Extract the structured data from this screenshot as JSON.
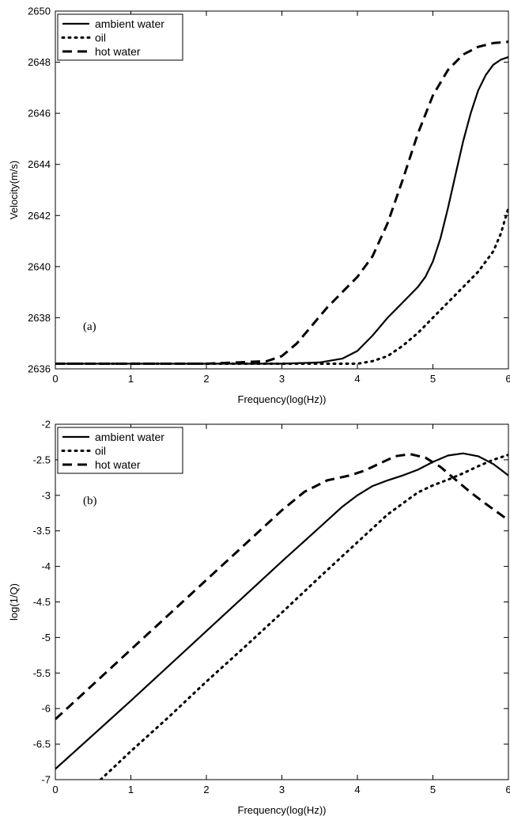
{
  "chart_data": [
    {
      "type": "line",
      "panel_label": "(a)",
      "title": "",
      "xlabel": "Frequency(log(Hz))",
      "ylabel": "Velocity(m/s)",
      "xlim": [
        0,
        6
      ],
      "ylim": [
        2636,
        2650
      ],
      "xticks": [
        0,
        1,
        2,
        3,
        4,
        5,
        6
      ],
      "yticks": [
        2636,
        2638,
        2640,
        2642,
        2644,
        2646,
        2648,
        2650
      ],
      "grid": false,
      "legend_position": "top-left",
      "series": [
        {
          "name": "ambient water",
          "style": "solid",
          "color": "#000000",
          "x": [
            0,
            1,
            2,
            3,
            3.5,
            3.8,
            4.0,
            4.2,
            4.4,
            4.6,
            4.8,
            4.9,
            5.0,
            5.1,
            5.2,
            5.3,
            5.4,
            5.5,
            5.6,
            5.7,
            5.8,
            5.9,
            6.0
          ],
          "y": [
            2636.2,
            2636.2,
            2636.2,
            2636.2,
            2636.25,
            2636.4,
            2636.7,
            2637.3,
            2638.0,
            2638.6,
            2639.2,
            2639.6,
            2640.2,
            2641.1,
            2642.3,
            2643.6,
            2644.9,
            2646.0,
            2646.9,
            2647.5,
            2647.9,
            2648.1,
            2648.2
          ]
        },
        {
          "name": "oil",
          "style": "dotted",
          "color": "#000000",
          "x": [
            0,
            1,
            2,
            3,
            4,
            4.2,
            4.4,
            4.6,
            4.8,
            5.0,
            5.2,
            5.4,
            5.6,
            5.8,
            5.9,
            6.0
          ],
          "y": [
            2636.2,
            2636.2,
            2636.2,
            2636.2,
            2636.2,
            2636.3,
            2636.5,
            2636.9,
            2637.4,
            2638.0,
            2638.6,
            2639.2,
            2639.8,
            2640.6,
            2641.3,
            2642.3
          ]
        },
        {
          "name": "hot water",
          "style": "dashed",
          "color": "#000000",
          "x": [
            0,
            1,
            2,
            2.8,
            3.0,
            3.2,
            3.4,
            3.6,
            3.8,
            4.0,
            4.2,
            4.4,
            4.6,
            4.8,
            5.0,
            5.2,
            5.4,
            5.6,
            5.8,
            6.0
          ],
          "y": [
            2636.2,
            2636.2,
            2636.2,
            2636.3,
            2636.5,
            2637.0,
            2637.7,
            2638.4,
            2639.0,
            2639.6,
            2640.4,
            2641.7,
            2643.4,
            2645.2,
            2646.7,
            2647.7,
            2648.3,
            2648.6,
            2648.75,
            2648.8
          ]
        }
      ]
    },
    {
      "type": "line",
      "panel_label": "(b)",
      "title": "",
      "xlabel": "Frequency(log(Hz))",
      "ylabel": "log(1/Q)",
      "xlim": [
        0,
        6
      ],
      "ylim": [
        -7,
        -2
      ],
      "xticks": [
        0,
        1,
        2,
        3,
        4,
        5,
        6
      ],
      "yticks": [
        -7,
        -6.5,
        -6,
        -5.5,
        -5,
        -4.5,
        -4,
        -3.5,
        -3,
        -2.5,
        -2
      ],
      "grid": false,
      "legend_position": "top-left",
      "series": [
        {
          "name": "ambient water",
          "style": "solid",
          "color": "#000000",
          "x": [
            0,
            0.5,
            1,
            1.5,
            2,
            2.5,
            3,
            3.5,
            3.8,
            4.0,
            4.2,
            4.4,
            4.6,
            4.8,
            5.0,
            5.2,
            5.4,
            5.6,
            5.8,
            6.0
          ],
          "y": [
            -6.85,
            -6.37,
            -5.89,
            -5.4,
            -4.91,
            -4.42,
            -3.93,
            -3.45,
            -3.16,
            -3.0,
            -2.87,
            -2.79,
            -2.72,
            -2.64,
            -2.53,
            -2.44,
            -2.41,
            -2.45,
            -2.56,
            -2.72
          ]
        },
        {
          "name": "oil",
          "style": "dotted",
          "color": "#000000",
          "x": [
            0.6,
            1.0,
            1.5,
            2.0,
            2.5,
            3.0,
            3.5,
            4.0,
            4.4,
            4.8,
            5.0,
            5.2,
            5.4,
            5.6,
            5.8,
            6.0
          ],
          "y": [
            -7.0,
            -6.6,
            -6.12,
            -5.62,
            -5.14,
            -4.65,
            -4.15,
            -3.66,
            -3.27,
            -2.96,
            -2.86,
            -2.78,
            -2.69,
            -2.59,
            -2.5,
            -2.43
          ]
        },
        {
          "name": "hot water",
          "style": "dashed",
          "color": "#000000",
          "x": [
            0,
            0.5,
            1,
            1.5,
            2,
            2.5,
            3,
            3.3,
            3.6,
            3.9,
            4.1,
            4.3,
            4.5,
            4.7,
            4.9,
            5.1,
            5.3,
            5.5,
            5.7,
            6.0
          ],
          "y": [
            -6.15,
            -5.66,
            -5.17,
            -4.68,
            -4.19,
            -3.7,
            -3.21,
            -2.95,
            -2.79,
            -2.72,
            -2.65,
            -2.55,
            -2.45,
            -2.42,
            -2.47,
            -2.6,
            -2.78,
            -2.96,
            -3.12,
            -3.35
          ]
        }
      ]
    }
  ]
}
